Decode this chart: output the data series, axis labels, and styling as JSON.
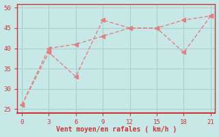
{
  "line1_x": [
    0,
    3,
    6,
    9,
    12,
    15,
    18,
    21
  ],
  "line1_y": [
    26,
    39,
    33,
    47,
    45,
    45,
    39,
    48
  ],
  "line2_x": [
    0,
    3,
    6,
    9,
    12,
    15,
    18,
    21
  ],
  "line2_y": [
    26,
    40,
    41,
    43,
    45,
    45,
    47,
    48
  ],
  "line_color": "#e08080",
  "bg_color": "#c8e8e8",
  "grid_color": "#a8d0d0",
  "xlabel": "Vent moyen/en rafales ( km/h )",
  "xlabel_color": "#cc3333",
  "tick_color": "#cc3333",
  "spine_color": "#cc3333",
  "xlim": [
    -0.5,
    21.5
  ],
  "ylim": [
    24,
    51
  ],
  "xticks": [
    0,
    3,
    6,
    9,
    12,
    15,
    18,
    21
  ],
  "yticks": [
    25,
    30,
    35,
    40,
    45,
    50
  ],
  "marker": "<",
  "marker_size": 4,
  "linewidth": 1.0
}
